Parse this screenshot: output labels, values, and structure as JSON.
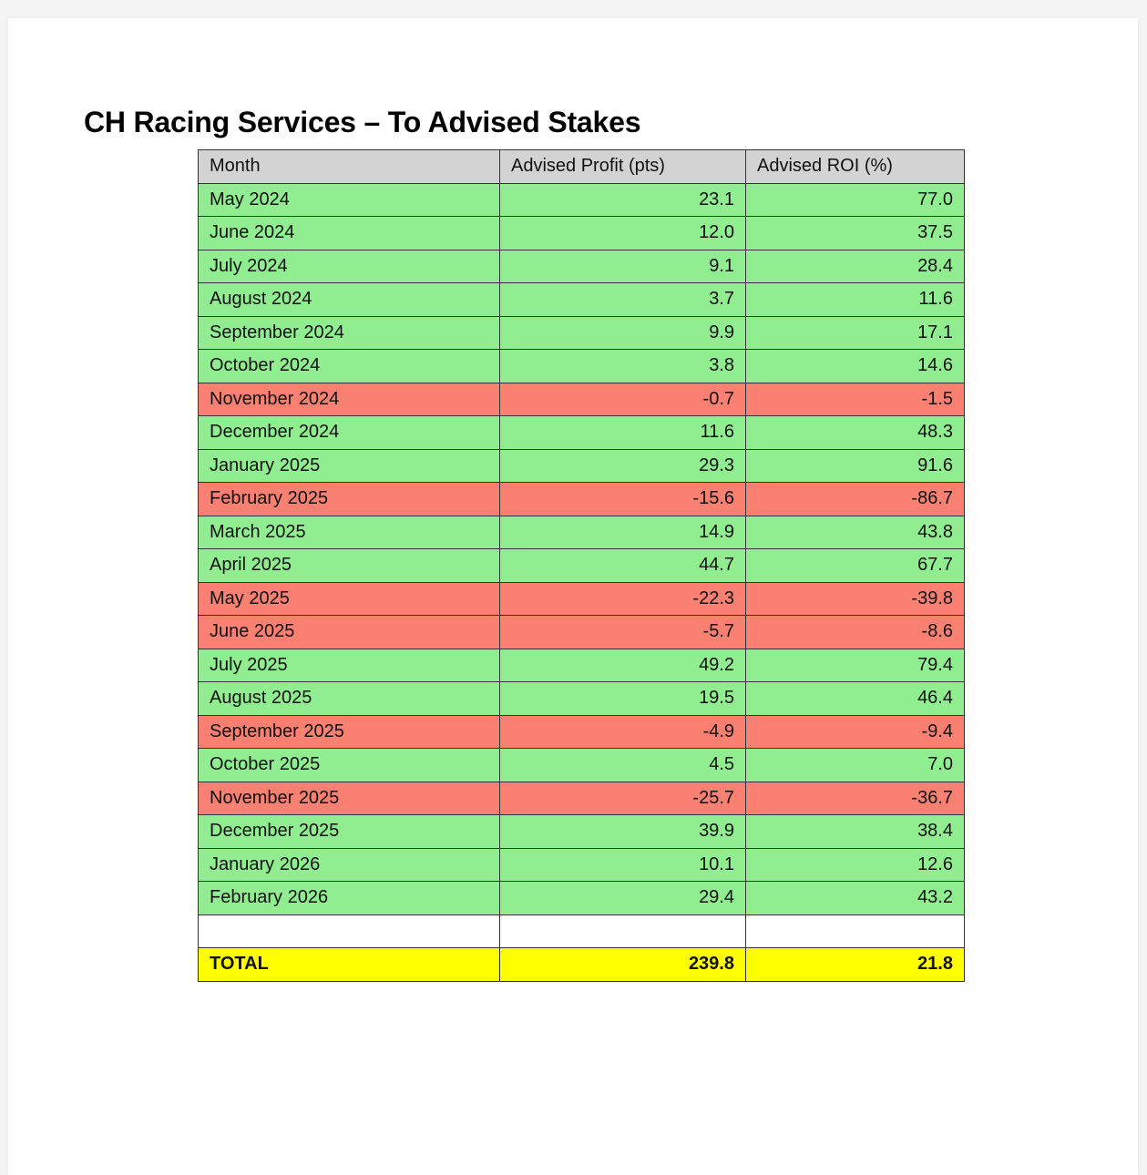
{
  "title": "CH Racing Services – To Advised Stakes",
  "colors": {
    "positive": "#90ee90",
    "negative": "#fa8072",
    "header": "#d3d3d3",
    "total": "#ffff00"
  },
  "table": {
    "headers": [
      "Month",
      "Advised Profit (pts)",
      "Advised ROI (%)"
    ],
    "rows": [
      {
        "month": "May 2024",
        "profit": "23.1",
        "roi": "77.0",
        "status": "pos"
      },
      {
        "month": "June 2024",
        "profit": "12.0",
        "roi": "37.5",
        "status": "pos"
      },
      {
        "month": "July 2024",
        "profit": "9.1",
        "roi": "28.4",
        "status": "pos"
      },
      {
        "month": "August 2024",
        "profit": "3.7",
        "roi": "11.6",
        "status": "pos"
      },
      {
        "month": "September 2024",
        "profit": "9.9",
        "roi": "17.1",
        "status": "pos"
      },
      {
        "month": "October 2024",
        "profit": "3.8",
        "roi": "14.6",
        "status": "pos"
      },
      {
        "month": "November 2024",
        "profit": "-0.7",
        "roi": "-1.5",
        "status": "neg"
      },
      {
        "month": "December 2024",
        "profit": "11.6",
        "roi": "48.3",
        "status": "pos"
      },
      {
        "month": "January 2025",
        "profit": "29.3",
        "roi": "91.6",
        "status": "pos"
      },
      {
        "month": "February 2025",
        "profit": "-15.6",
        "roi": "-86.7",
        "status": "neg"
      },
      {
        "month": "March 2025",
        "profit": "14.9",
        "roi": "43.8",
        "status": "pos"
      },
      {
        "month": "April 2025",
        "profit": "44.7",
        "roi": "67.7",
        "status": "pos"
      },
      {
        "month": "May 2025",
        "profit": "-22.3",
        "roi": "-39.8",
        "status": "neg"
      },
      {
        "month": "June 2025",
        "profit": "-5.7",
        "roi": "-8.6",
        "status": "neg"
      },
      {
        "month": "July 2025",
        "profit": "49.2",
        "roi": "79.4",
        "status": "pos"
      },
      {
        "month": "August 2025",
        "profit": "19.5",
        "roi": "46.4",
        "status": "pos"
      },
      {
        "month": "September 2025",
        "profit": "-4.9",
        "roi": "-9.4",
        "status": "neg"
      },
      {
        "month": "October 2025",
        "profit": "4.5",
        "roi": "7.0",
        "status": "pos"
      },
      {
        "month": "November 2025",
        "profit": "-25.7",
        "roi": "-36.7",
        "status": "neg"
      },
      {
        "month": "December 2025",
        "profit": "39.9",
        "roi": "38.4",
        "status": "pos"
      },
      {
        "month": "January 2026",
        "profit": "10.1",
        "roi": "12.6",
        "status": "pos"
      },
      {
        "month": "February 2026",
        "profit": "29.4",
        "roi": "43.2",
        "status": "pos"
      }
    ],
    "total": {
      "label": "TOTAL",
      "profit": "239.8",
      "roi": "21.8"
    }
  }
}
